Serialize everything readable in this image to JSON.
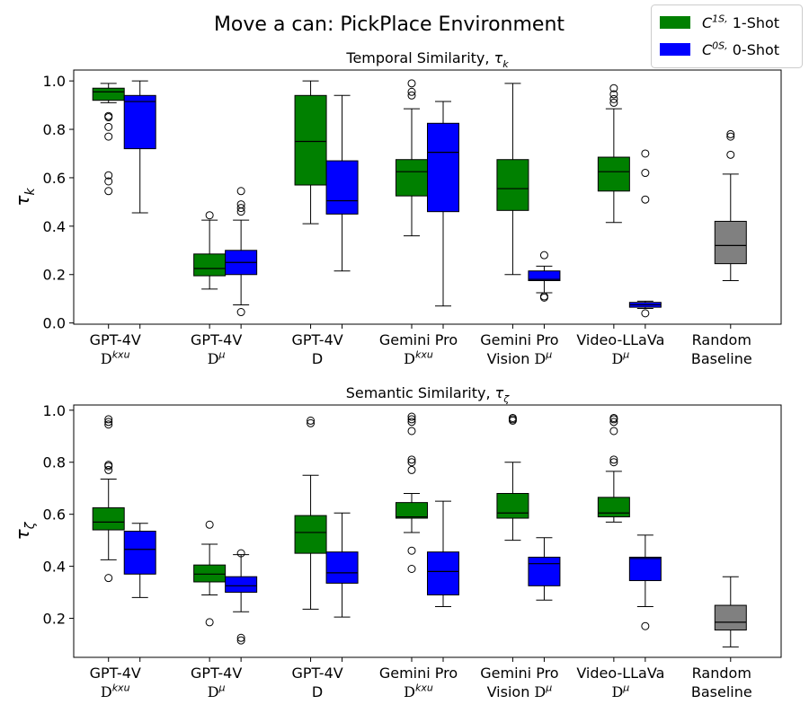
{
  "figure": {
    "title": "Move a can: PickPlace Environment",
    "legend": [
      {
        "label": "C^1S, 1-Shot",
        "color": "#008000"
      },
      {
        "label": "C^0S, 0-Shot",
        "color": "#0000ff"
      }
    ],
    "legend_position": "top-right"
  },
  "chart_data": [
    {
      "type": "box",
      "title": "Temporal Similarity, τ_k",
      "xlabel": "",
      "ylabel": "τ_k",
      "ylim": [
        -0.005,
        1.045
      ],
      "yticks": [
        0.0,
        0.2,
        0.4,
        0.6,
        0.8,
        1.0
      ],
      "grid": false,
      "categories": [
        [
          "GPT-4V",
          "D^kxu"
        ],
        [
          "GPT-4V",
          "D^μ"
        ],
        [
          "GPT-4V",
          "D"
        ],
        [
          "Gemini Pro",
          "D^kxu"
        ],
        [
          "Gemini Pro",
          "Vision D^μ"
        ],
        [
          "Video-LLaVa",
          "D^μ"
        ],
        [
          "Random",
          "Baseline"
        ]
      ],
      "series": [
        {
          "name": "C^1S, 1-Shot",
          "color": "#008000",
          "boxes": [
            {
              "whislo": 0.91,
              "q1": 0.92,
              "med": 0.955,
              "q3": 0.97,
              "whishi": 0.99,
              "fliers": [
                0.855,
                0.85,
                0.81,
                0.77,
                0.61,
                0.585,
                0.545
              ]
            },
            {
              "whislo": 0.14,
              "q1": 0.195,
              "med": 0.225,
              "q3": 0.285,
              "whishi": 0.425,
              "fliers": [
                0.445
              ]
            },
            {
              "whislo": 0.41,
              "q1": 0.57,
              "med": 0.75,
              "q3": 0.94,
              "whishi": 1.0,
              "fliers": []
            },
            {
              "whislo": 0.36,
              "q1": 0.525,
              "med": 0.625,
              "q3": 0.675,
              "whishi": 0.885,
              "fliers": [
                0.99,
                0.955,
                0.94
              ]
            },
            {
              "whislo": 0.2,
              "q1": 0.465,
              "med": 0.555,
              "q3": 0.675,
              "whishi": 0.99,
              "fliers": []
            },
            {
              "whislo": 0.415,
              "q1": 0.545,
              "med": 0.625,
              "q3": 0.685,
              "whishi": 0.885,
              "fliers": [
                0.97,
                0.945,
                0.925,
                0.91
              ]
            }
          ]
        },
        {
          "name": "C^0S, 0-Shot",
          "color": "#0000ff",
          "boxes": [
            {
              "whislo": 0.455,
              "q1": 0.72,
              "med": 0.915,
              "q3": 0.94,
              "whishi": 1.0,
              "fliers": []
            },
            {
              "whislo": 0.075,
              "q1": 0.2,
              "med": 0.25,
              "q3": 0.3,
              "whishi": 0.425,
              "fliers": [
                0.545,
                0.49,
                0.475,
                0.46,
                0.045
              ]
            },
            {
              "whislo": 0.215,
              "q1": 0.45,
              "med": 0.505,
              "q3": 0.67,
              "whishi": 0.94,
              "fliers": []
            },
            {
              "whislo": 0.07,
              "q1": 0.46,
              "med": 0.705,
              "q3": 0.825,
              "whishi": 0.915,
              "fliers": []
            },
            {
              "whislo": 0.125,
              "q1": 0.175,
              "med": 0.18,
              "q3": 0.215,
              "whishi": 0.235,
              "fliers": [
                0.28,
                0.11,
                0.105
              ]
            },
            {
              "whislo": 0.06,
              "q1": 0.065,
              "med": 0.075,
              "q3": 0.085,
              "whishi": 0.09,
              "fliers": [
                0.7,
                0.62,
                0.51,
                0.04
              ]
            }
          ]
        },
        {
          "name": "",
          "color": "#808080",
          "boxes": [
            {
              "whislo": 0.175,
              "q1": 0.245,
              "med": 0.32,
              "q3": 0.42,
              "whishi": 0.615,
              "fliers": [
                0.78,
                0.77,
                0.695
              ]
            }
          ]
        }
      ]
    },
    {
      "type": "box",
      "title": "Semantic Similarity, τ_ζ",
      "xlabel": "",
      "ylabel": "τ_ζ",
      "ylim": [
        0.05,
        1.02
      ],
      "yticks": [
        0.2,
        0.4,
        0.6,
        0.8,
        1.0
      ],
      "grid": false,
      "categories": [
        [
          "GPT-4V",
          "D^kxu"
        ],
        [
          "GPT-4V",
          "D^μ"
        ],
        [
          "GPT-4V",
          "D"
        ],
        [
          "Gemini Pro",
          "D^kxu"
        ],
        [
          "Gemini Pro",
          "Vision D^μ"
        ],
        [
          "Video-LLaVa",
          "D^μ"
        ],
        [
          "Random",
          "Baseline"
        ]
      ],
      "series": [
        {
          "name": "C^1S, 1-Shot",
          "color": "#008000",
          "boxes": [
            {
              "whislo": 0.425,
              "q1": 0.54,
              "med": 0.57,
              "q3": 0.625,
              "whishi": 0.735,
              "fliers": [
                0.965,
                0.955,
                0.945,
                0.79,
                0.785,
                0.77,
                0.355
              ]
            },
            {
              "whislo": 0.29,
              "q1": 0.34,
              "med": 0.37,
              "q3": 0.405,
              "whishi": 0.485,
              "fliers": [
                0.56,
                0.185
              ]
            },
            {
              "whislo": 0.235,
              "q1": 0.45,
              "med": 0.53,
              "q3": 0.595,
              "whishi": 0.75,
              "fliers": [
                0.96,
                0.95
              ]
            },
            {
              "whislo": 0.53,
              "q1": 0.585,
              "med": 0.59,
              "q3": 0.645,
              "whishi": 0.68,
              "fliers": [
                0.975,
                0.965,
                0.955,
                0.92,
                0.81,
                0.8,
                0.77,
                0.46,
                0.39
              ]
            },
            {
              "whislo": 0.5,
              "q1": 0.585,
              "med": 0.605,
              "q3": 0.68,
              "whishi": 0.8,
              "fliers": [
                0.97,
                0.965,
                0.96
              ]
            },
            {
              "whislo": 0.57,
              "q1": 0.59,
              "med": 0.605,
              "q3": 0.665,
              "whishi": 0.765,
              "fliers": [
                0.97,
                0.965,
                0.955,
                0.92,
                0.81,
                0.8
              ]
            }
          ]
        },
        {
          "name": "C^0S, 0-Shot",
          "color": "#0000ff",
          "boxes": [
            {
              "whislo": 0.28,
              "q1": 0.37,
              "med": 0.465,
              "q3": 0.535,
              "whishi": 0.565,
              "fliers": []
            },
            {
              "whislo": 0.225,
              "q1": 0.3,
              "med": 0.325,
              "q3": 0.36,
              "whishi": 0.445,
              "fliers": [
                0.45,
                0.125,
                0.115
              ]
            },
            {
              "whislo": 0.205,
              "q1": 0.335,
              "med": 0.375,
              "q3": 0.455,
              "whishi": 0.605,
              "fliers": []
            },
            {
              "whislo": 0.245,
              "q1": 0.29,
              "med": 0.38,
              "q3": 0.455,
              "whishi": 0.65,
              "fliers": []
            },
            {
              "whislo": 0.27,
              "q1": 0.325,
              "med": 0.41,
              "q3": 0.435,
              "whishi": 0.51,
              "fliers": []
            },
            {
              "whislo": 0.245,
              "q1": 0.345,
              "med": 0.43,
              "q3": 0.435,
              "whishi": 0.52,
              "fliers": [
                0.17
              ]
            }
          ]
        },
        {
          "name": "",
          "color": "#808080",
          "boxes": [
            {
              "whislo": 0.09,
              "q1": 0.155,
              "med": 0.185,
              "q3": 0.25,
              "whishi": 0.36,
              "fliers": []
            }
          ]
        }
      ]
    }
  ]
}
